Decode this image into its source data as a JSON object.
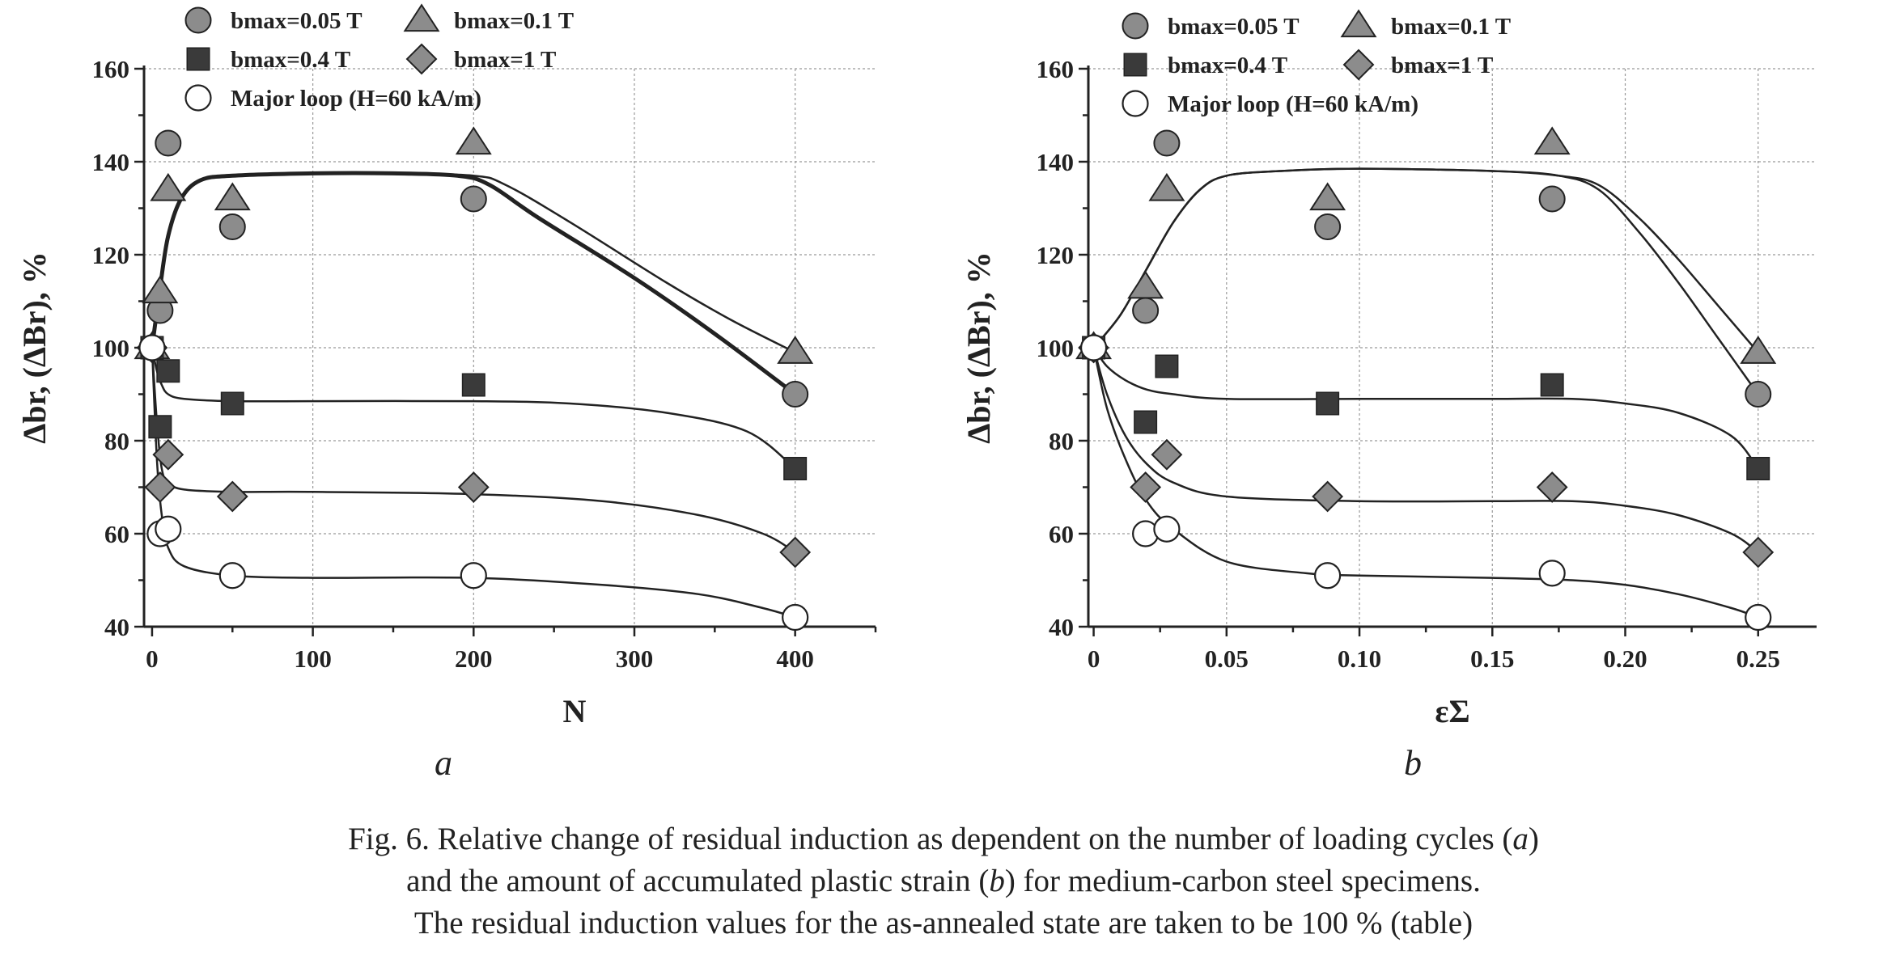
{
  "caption": {
    "line1_before": "Fig. 6. Relative change of residual induction as dependent on the number of loading cycles (",
    "line1_italic": "a",
    "line1_after": ")",
    "line2_before": "and the amount of accumulated plastic strain (",
    "line2_italic": "b",
    "line2_after": ") for medium-carbon steel specimens.",
    "line3": "The residual induction values for the as-annealed state are taken to be 100 % (table)"
  },
  "colors": {
    "filled_marker": "#8c8c8c",
    "square_marker": "#3a3a3a",
    "ink": "#222222",
    "grid": "#999999"
  },
  "chart_data": [
    {
      "type": "scatter",
      "panel_label": "a",
      "xlabel": "N",
      "ylabel": "Δbr, (ΔBr), %",
      "xlim": [
        -5,
        450
      ],
      "ylim": [
        40,
        160
      ],
      "xticks": [
        0,
        100,
        200,
        300,
        400
      ],
      "xtick_labels": [
        "0",
        "100",
        "200",
        "300",
        "400"
      ],
      "yticks": [
        40,
        60,
        80,
        100,
        120,
        140,
        160
      ],
      "ytick_labels": [
        "40",
        "60",
        "80",
        "100",
        "120",
        "140",
        "160"
      ],
      "grid": true,
      "legend_position": "top",
      "legend": [
        {
          "marker": "circle-filled",
          "label": "bmax=0.05 T"
        },
        {
          "marker": "triangle",
          "label": "bmax=0.1 T"
        },
        {
          "marker": "square",
          "label": "bmax=0.4 T"
        },
        {
          "marker": "diamond",
          "label": "bmax=1 T"
        },
        {
          "marker": "circle-open",
          "label": "Major loop (H=60 kA/m)"
        }
      ],
      "series": [
        {
          "name": "bmax=0.05 T",
          "marker": "circle-filled",
          "points": [
            [
              0,
              100
            ],
            [
              5,
              108
            ],
            [
              10,
              144
            ],
            [
              50,
              126
            ],
            [
              200,
              132
            ],
            [
              400,
              90
            ]
          ]
        },
        {
          "name": "bmax=0.1 T",
          "marker": "triangle",
          "points": [
            [
              0,
              100
            ],
            [
              5,
              112
            ],
            [
              10,
              134
            ],
            [
              50,
              132
            ],
            [
              200,
              144
            ],
            [
              400,
              99
            ]
          ]
        },
        {
          "name": "bmax=0.4 T",
          "marker": "square",
          "points": [
            [
              0,
              100
            ],
            [
              5,
              83
            ],
            [
              10,
              95
            ],
            [
              50,
              88
            ],
            [
              200,
              92
            ],
            [
              400,
              74
            ]
          ]
        },
        {
          "name": "bmax=1 T",
          "marker": "diamond",
          "points": [
            [
              0,
              100
            ],
            [
              5,
              70
            ],
            [
              10,
              77
            ],
            [
              50,
              68
            ],
            [
              200,
              70
            ],
            [
              400,
              56
            ]
          ]
        },
        {
          "name": "Major loop (H=60 kA/m)",
          "marker": "circle-open",
          "points": [
            [
              0,
              100
            ],
            [
              5,
              60
            ],
            [
              10,
              61
            ],
            [
              50,
              51
            ],
            [
              200,
              51
            ],
            [
              400,
              42
            ]
          ]
        }
      ],
      "fit_curves": [
        {
          "width": 5,
          "points": [
            [
              0,
              100
            ],
            [
              5,
              113
            ],
            [
              10,
              124
            ],
            [
              18,
              132
            ],
            [
              30,
              136
            ],
            [
              50,
              137
            ],
            [
              100,
              137.5
            ],
            [
              150,
              137.5
            ],
            [
              190,
              137
            ],
            [
              210,
              135
            ],
            [
              240,
              128
            ],
            [
              300,
              115
            ],
            [
              350,
              103
            ],
            [
              400,
              90
            ]
          ]
        },
        {
          "width": 2.5,
          "points": [
            [
              0,
              100
            ],
            [
              5,
              113
            ],
            [
              10,
              124
            ],
            [
              18,
              132
            ],
            [
              30,
              136
            ],
            [
              50,
              137
            ],
            [
              100,
              137.5
            ],
            [
              150,
              137.5
            ],
            [
              200,
              137
            ],
            [
              220,
              135
            ],
            [
              260,
              127
            ],
            [
              320,
              114
            ],
            [
              360,
              106
            ],
            [
              400,
              99
            ]
          ]
        },
        {
          "width": 2.5,
          "points": [
            [
              0,
              100
            ],
            [
              3,
              95
            ],
            [
              6,
              92
            ],
            [
              10,
              90
            ],
            [
              20,
              89
            ],
            [
              50,
              88.5
            ],
            [
              100,
              88.5
            ],
            [
              200,
              88.5
            ],
            [
              260,
              88
            ],
            [
              320,
              86
            ],
            [
              370,
              82
            ],
            [
              400,
              74
            ]
          ]
        },
        {
          "width": 2.5,
          "points": [
            [
              0,
              100
            ],
            [
              3,
              84
            ],
            [
              6,
              74
            ],
            [
              10,
              71
            ],
            [
              20,
              69.5
            ],
            [
              50,
              69
            ],
            [
              100,
              69
            ],
            [
              200,
              68.5
            ],
            [
              280,
              67
            ],
            [
              340,
              64
            ],
            [
              380,
              60
            ],
            [
              400,
              56
            ]
          ]
        },
        {
          "width": 2.5,
          "points": [
            [
              0,
              100
            ],
            [
              3,
              76
            ],
            [
              6,
              64
            ],
            [
              10,
              57
            ],
            [
              20,
              53
            ],
            [
              50,
              51
            ],
            [
              100,
              50.5
            ],
            [
              200,
              50.5
            ],
            [
              280,
              49
            ],
            [
              340,
              47
            ],
            [
              380,
              44
            ],
            [
              400,
              42
            ]
          ]
        }
      ]
    },
    {
      "type": "scatter",
      "panel_label": "b",
      "xlabel": "εΣ",
      "ylabel": "Δbr, (ΔBr), %",
      "xlim": [
        -0.002,
        0.272
      ],
      "ylim": [
        40,
        160
      ],
      "xticks": [
        0,
        0.05,
        0.1,
        0.15,
        0.2,
        0.25
      ],
      "xtick_labels": [
        "0",
        "0.05",
        "0.10",
        "0.15",
        "0.20",
        "0.25"
      ],
      "yticks": [
        40,
        60,
        80,
        100,
        120,
        140,
        160
      ],
      "ytick_labels": [
        "40",
        "60",
        "80",
        "100",
        "120",
        "140",
        "160"
      ],
      "grid": true,
      "legend_position": "top",
      "legend": [
        {
          "marker": "circle-filled",
          "label": "bmax=0.05 T"
        },
        {
          "marker": "triangle",
          "label": "bmax=0.1 T"
        },
        {
          "marker": "square",
          "label": "bmax=0.4 T"
        },
        {
          "marker": "diamond",
          "label": "bmax=1 T"
        },
        {
          "marker": "circle-open",
          "label": "Major loop (H=60 kA/m)"
        }
      ],
      "series": [
        {
          "name": "bmax=0.05 T",
          "marker": "circle-filled",
          "points": [
            [
              0,
              100
            ],
            [
              0.0195,
              108
            ],
            [
              0.0275,
              144
            ],
            [
              0.088,
              126
            ],
            [
              0.1725,
              132
            ],
            [
              0.25,
              90
            ]
          ]
        },
        {
          "name": "bmax=0.1 T",
          "marker": "triangle",
          "points": [
            [
              0,
              100
            ],
            [
              0.0195,
              113
            ],
            [
              0.0275,
              134
            ],
            [
              0.088,
              132
            ],
            [
              0.1725,
              144
            ],
            [
              0.25,
              99
            ]
          ]
        },
        {
          "name": "bmax=0.4 T",
          "marker": "square",
          "points": [
            [
              0,
              100
            ],
            [
              0.0195,
              84
            ],
            [
              0.0275,
              96
            ],
            [
              0.088,
              88
            ],
            [
              0.1725,
              92
            ],
            [
              0.25,
              74
            ]
          ]
        },
        {
          "name": "bmax=1 T",
          "marker": "diamond",
          "points": [
            [
              0,
              100
            ],
            [
              0.0195,
              70
            ],
            [
              0.0275,
              77
            ],
            [
              0.088,
              68
            ],
            [
              0.1725,
              70
            ],
            [
              0.25,
              56
            ]
          ]
        },
        {
          "name": "Major loop (H=60 kA/m)",
          "marker": "circle-open",
          "points": [
            [
              0,
              100
            ],
            [
              0.0195,
              60
            ],
            [
              0.0275,
              61
            ],
            [
              0.088,
              51
            ],
            [
              0.1725,
              51.5
            ],
            [
              0.25,
              42
            ]
          ]
        }
      ],
      "fit_curves": [
        {
          "width": 2.5,
          "points": [
            [
              0,
              100
            ],
            [
              0.01,
              107
            ],
            [
              0.02,
              117
            ],
            [
              0.03,
              127
            ],
            [
              0.04,
              134
            ],
            [
              0.05,
              137
            ],
            [
              0.07,
              138
            ],
            [
              0.1,
              138.5
            ],
            [
              0.15,
              138
            ],
            [
              0.175,
              137
            ],
            [
              0.19,
              134
            ],
            [
              0.205,
              125
            ],
            [
              0.22,
              114
            ],
            [
              0.235,
              102
            ],
            [
              0.25,
              90
            ]
          ]
        },
        {
          "width": 2.5,
          "points": [
            [
              0,
              100
            ],
            [
              0.01,
              107
            ],
            [
              0.02,
              117
            ],
            [
              0.03,
              127
            ],
            [
              0.04,
              134
            ],
            [
              0.05,
              137
            ],
            [
              0.07,
              138
            ],
            [
              0.1,
              138.5
            ],
            [
              0.15,
              138
            ],
            [
              0.175,
              137
            ],
            [
              0.19,
              135
            ],
            [
              0.205,
              128
            ],
            [
              0.22,
              119
            ],
            [
              0.235,
              109
            ],
            [
              0.25,
              99
            ]
          ]
        },
        {
          "width": 2.5,
          "points": [
            [
              0,
              100
            ],
            [
              0.005,
              96
            ],
            [
              0.012,
              93
            ],
            [
              0.02,
              91
            ],
            [
              0.03,
              90
            ],
            [
              0.05,
              89
            ],
            [
              0.1,
              89
            ],
            [
              0.15,
              89
            ],
            [
              0.18,
              89
            ],
            [
              0.2,
              88
            ],
            [
              0.22,
              86
            ],
            [
              0.24,
              81
            ],
            [
              0.25,
              74
            ]
          ]
        },
        {
          "width": 2.5,
          "points": [
            [
              0,
              100
            ],
            [
              0.005,
              90
            ],
            [
              0.012,
              81
            ],
            [
              0.02,
              75
            ],
            [
              0.03,
              71
            ],
            [
              0.05,
              68
            ],
            [
              0.1,
              67
            ],
            [
              0.15,
              67
            ],
            [
              0.18,
              67
            ],
            [
              0.2,
              66
            ],
            [
              0.22,
              64
            ],
            [
              0.24,
              60
            ],
            [
              0.25,
              56
            ]
          ]
        },
        {
          "width": 2.5,
          "points": [
            [
              0,
              100
            ],
            [
              0.005,
              87
            ],
            [
              0.012,
              76
            ],
            [
              0.02,
              67
            ],
            [
              0.03,
              61
            ],
            [
              0.05,
              54
            ],
            [
              0.08,
              51.5
            ],
            [
              0.1,
              51
            ],
            [
              0.15,
              50.5
            ],
            [
              0.18,
              50
            ],
            [
              0.2,
              49
            ],
            [
              0.22,
              47
            ],
            [
              0.24,
              44
            ],
            [
              0.25,
              42
            ]
          ]
        }
      ]
    }
  ]
}
